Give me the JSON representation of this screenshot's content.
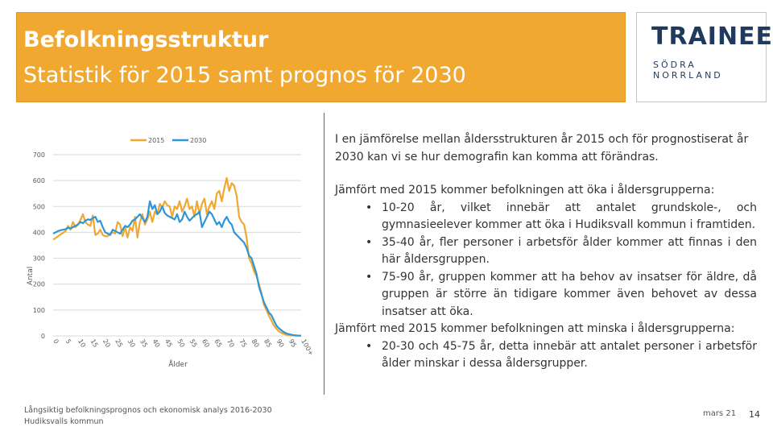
{
  "header": {
    "title": "Befolkningsstruktur",
    "subtitle": "Statistik för 2015 samt prognos för 2030"
  },
  "logo": {
    "main": "TRAINEE",
    "sub": "SÖDRA NORRLAND"
  },
  "colors": {
    "accent": "#f0a830",
    "series2015": "#f0a830",
    "series2030": "#2e96d6",
    "logo": "#1f3a5c"
  },
  "chart_data": {
    "type": "line",
    "title": "",
    "xlabel": "Ålder",
    "ylabel": "Antal",
    "ylim": [
      0,
      700
    ],
    "xlim": [
      0,
      100
    ],
    "yticks": [
      0,
      100,
      200,
      300,
      400,
      500,
      600,
      700
    ],
    "xtick_labels": [
      "0",
      "5",
      "10",
      "15",
      "20",
      "25",
      "30",
      "35",
      "40",
      "45",
      "50",
      "55",
      "60",
      "65",
      "70",
      "75",
      "80",
      "85",
      "90",
      "95",
      "100+"
    ],
    "legend_position": "top",
    "x": [
      0,
      1,
      2,
      3,
      4,
      5,
      6,
      7,
      8,
      9,
      10,
      11,
      12,
      13,
      14,
      15,
      16,
      17,
      18,
      19,
      20,
      21,
      22,
      23,
      24,
      25,
      26,
      27,
      28,
      29,
      30,
      31,
      32,
      33,
      34,
      35,
      36,
      37,
      38,
      39,
      40,
      41,
      42,
      43,
      44,
      45,
      46,
      47,
      48,
      49,
      50,
      51,
      52,
      53,
      54,
      55,
      56,
      57,
      58,
      59,
      60,
      61,
      62,
      63,
      64,
      65,
      66,
      67,
      68,
      69,
      70,
      71,
      72,
      73,
      74,
      75,
      76,
      77,
      78,
      79,
      80,
      81,
      82,
      83,
      84,
      85,
      86,
      87,
      88,
      89,
      90,
      91,
      92,
      93,
      94,
      95,
      96,
      97,
      98,
      99,
      100
    ],
    "series": [
      {
        "name": "2015",
        "values": [
          372,
          378,
          385,
          392,
          398,
          405,
          425,
          410,
          440,
          420,
          430,
          448,
          470,
          440,
          430,
          425,
          465,
          390,
          395,
          410,
          390,
          385,
          385,
          395,
          400,
          395,
          440,
          430,
          385,
          420,
          380,
          420,
          405,
          460,
          380,
          440,
          470,
          430,
          450,
          480,
          440,
          480,
          470,
          510,
          495,
          520,
          505,
          500,
          460,
          500,
          490,
          520,
          480,
          500,
          530,
          490,
          500,
          460,
          520,
          470,
          510,
          530,
          470,
          500,
          520,
          490,
          550,
          560,
          520,
          570,
          610,
          560,
          590,
          580,
          540,
          460,
          440,
          430,
          380,
          300,
          280,
          250,
          230,
          200,
          165,
          120,
          100,
          78,
          60,
          40,
          28,
          18,
          12,
          8,
          5,
          3,
          2,
          2,
          1,
          1,
          1
        ]
      },
      {
        "name": "2030",
        "values": [
          395,
          400,
          405,
          408,
          410,
          412,
          418,
          415,
          420,
          425,
          430,
          440,
          435,
          445,
          450,
          448,
          455,
          460,
          440,
          445,
          420,
          400,
          395,
          390,
          410,
          405,
          400,
          395,
          410,
          425,
          420,
          430,
          445,
          450,
          460,
          470,
          455,
          440,
          460,
          520,
          490,
          505,
          470,
          480,
          500,
          475,
          465,
          460,
          455,
          450,
          470,
          440,
          450,
          480,
          460,
          445,
          455,
          465,
          470,
          480,
          420,
          440,
          460,
          480,
          470,
          450,
          430,
          440,
          420,
          445,
          460,
          440,
          430,
          400,
          390,
          380,
          370,
          360,
          340,
          310,
          300,
          270,
          240,
          190,
          160,
          130,
          110,
          90,
          80,
          60,
          40,
          30,
          22,
          15,
          10,
          7,
          5,
          3,
          2,
          1,
          1
        ]
      }
    ]
  },
  "text": {
    "p1": "I en jämförelse mellan åldersstrukturen år 2015 och för prognostiserat år 2030 kan vi se hur demografin kan komma att förändras.",
    "p2": "Jämfört med 2015 kommer befolkningen att öka i åldersgrupperna:",
    "b1": "10-20 år, vilket innebär att antalet grundskole-, och gymnasieelever kommer att öka i Hudiksvall kommun i framtiden.",
    "b2": "35-40 år, fler personer i arbetsför ålder kommer att finnas i den här åldersgruppen.",
    "b3": "75-90 år, gruppen kommer att ha behov av insatser för äldre, då gruppen är större än tidigare kommer även behovet av dessa insatser att öka.",
    "p3": "Jämfört med 2015 kommer befolkningen att minska i åldersgrupperna:",
    "b4": "20-30 och 45-75 år, detta innebär att antalet personer i arbetsför ålder minskar i dessa åldersgrupper."
  },
  "footer": {
    "source_line1": "Långsiktig befolkningsprognos och ekonomisk analys 2016-2030",
    "source_line2": "Hudiksvalls kommun",
    "date": "mars 21",
    "page": "14"
  }
}
